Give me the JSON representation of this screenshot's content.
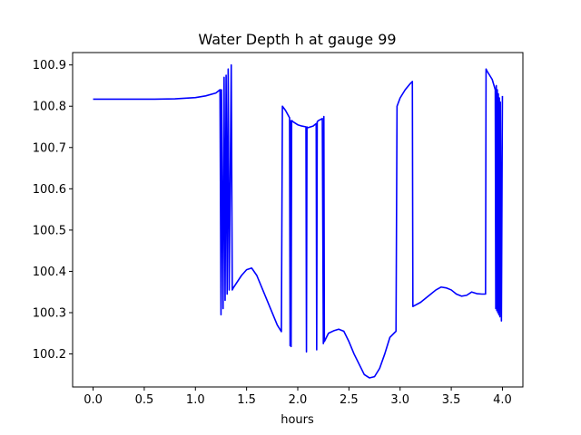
{
  "chart_data": {
    "type": "line",
    "title": "Water Depth h at gauge 99",
    "xlabel": "hours",
    "ylabel": "",
    "xlim": [
      -0.2,
      4.2
    ],
    "ylim": [
      100.12,
      100.93
    ],
    "xticks": [
      0.0,
      0.5,
      1.0,
      1.5,
      2.0,
      2.5,
      3.0,
      3.5,
      4.0
    ],
    "xtick_labels": [
      "0.0",
      "0.5",
      "1.0",
      "1.5",
      "2.0",
      "2.5",
      "3.0",
      "3.5",
      "4.0"
    ],
    "yticks": [
      100.2,
      100.3,
      100.4,
      100.5,
      100.6,
      100.7,
      100.8,
      100.9
    ],
    "ytick_labels": [
      "100.2",
      "100.3",
      "100.4",
      "100.5",
      "100.6",
      "100.7",
      "100.8",
      "100.9"
    ],
    "grid": false,
    "series": [
      {
        "color": "#0000ff",
        "x": [
          0.0,
          0.3,
          0.6,
          0.8,
          1.0,
          1.1,
          1.2,
          1.24,
          1.25,
          1.255,
          1.27,
          1.28,
          1.29,
          1.3,
          1.31,
          1.32,
          1.33,
          1.35,
          1.36,
          1.37,
          1.45,
          1.5,
          1.55,
          1.6,
          1.7,
          1.8,
          1.84,
          1.85,
          1.88,
          1.92,
          1.925,
          1.93,
          1.935,
          1.94,
          1.945,
          1.95,
          2.0,
          2.04,
          2.08,
          2.085,
          2.09,
          2.095,
          2.1,
          2.15,
          2.18,
          2.185,
          2.19,
          2.2,
          2.24,
          2.25,
          2.255,
          2.26,
          2.3,
          2.35,
          2.4,
          2.45,
          2.5,
          2.55,
          2.6,
          2.65,
          2.7,
          2.75,
          2.8,
          2.85,
          2.9,
          2.96,
          2.97,
          3.0,
          3.05,
          3.1,
          3.12,
          3.125,
          3.2,
          3.3,
          3.35,
          3.4,
          3.45,
          3.5,
          3.55,
          3.6,
          3.65,
          3.7,
          3.75,
          3.8,
          3.835,
          3.84,
          3.85,
          3.9,
          3.93,
          3.935,
          3.94,
          3.945,
          3.95,
          3.955,
          3.96,
          3.965,
          3.97,
          3.975,
          3.98,
          3.99,
          4.0
        ],
        "y": [
          100.817,
          100.817,
          100.817,
          100.818,
          100.821,
          100.825,
          100.832,
          100.84,
          100.295,
          100.84,
          100.31,
          100.87,
          100.33,
          100.875,
          100.345,
          100.89,
          100.355,
          100.9,
          100.355,
          100.36,
          100.39,
          100.404,
          100.408,
          100.39,
          100.33,
          100.27,
          100.254,
          100.8,
          100.79,
          100.772,
          100.22,
          100.765,
          100.218,
          100.765,
          100.765,
          100.763,
          100.755,
          100.752,
          100.75,
          100.205,
          100.75,
          100.748,
          100.748,
          100.752,
          100.758,
          100.21,
          100.762,
          100.765,
          100.77,
          100.225,
          100.775,
          100.23,
          100.25,
          100.256,
          100.26,
          100.255,
          100.23,
          100.2,
          100.175,
          100.15,
          100.142,
          100.145,
          100.165,
          100.2,
          100.24,
          100.255,
          100.8,
          100.82,
          100.84,
          100.855,
          100.86,
          100.315,
          100.325,
          100.345,
          100.355,
          100.362,
          100.36,
          100.355,
          100.345,
          100.34,
          100.342,
          100.35,
          100.346,
          100.345,
          100.345,
          100.89,
          100.885,
          100.865,
          100.84,
          100.31,
          100.85,
          100.305,
          100.84,
          100.3,
          100.83,
          100.295,
          100.82,
          100.29,
          100.81,
          100.28,
          100.825
        ]
      }
    ]
  }
}
